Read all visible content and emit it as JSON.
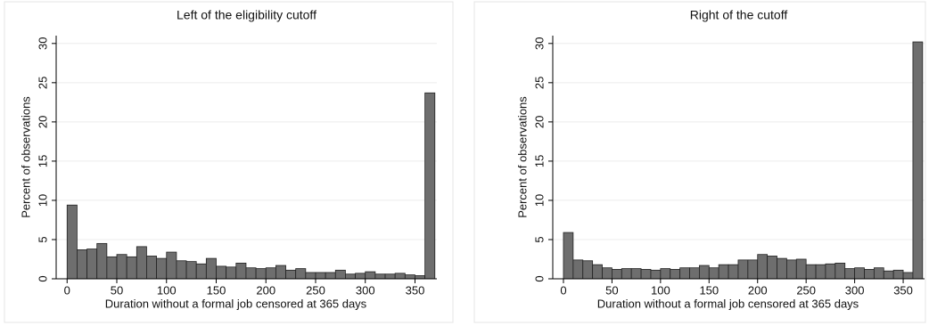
{
  "chart_data": [
    {
      "type": "histogram",
      "title": "Left of the eligibility cutoff",
      "xlabel": "Duration without a formal job censored at 365 days",
      "ylabel": "Percent of observations",
      "bins": [
        0,
        10,
        20,
        30,
        40,
        50,
        60,
        70,
        80,
        90,
        100,
        110,
        120,
        130,
        140,
        150,
        160,
        170,
        180,
        190,
        200,
        210,
        220,
        230,
        240,
        250,
        260,
        270,
        280,
        290,
        300,
        310,
        320,
        330,
        340,
        350,
        360,
        370
      ],
      "values": [
        9.4,
        3.7,
        3.8,
        4.5,
        2.8,
        3.1,
        2.8,
        4.1,
        2.9,
        2.6,
        3.4,
        2.3,
        2.2,
        1.9,
        2.6,
        1.6,
        1.5,
        2.0,
        1.4,
        1.3,
        1.4,
        1.7,
        1.1,
        1.3,
        0.8,
        0.8,
        0.8,
        1.1,
        0.6,
        0.7,
        0.9,
        0.6,
        0.6,
        0.7,
        0.5,
        0.4,
        23.7
      ],
      "color": "#6e6e6e",
      "grid": true,
      "xlim": [
        -11,
        372
      ],
      "ylim": [
        0,
        31
      ],
      "xticks": [
        0,
        50,
        100,
        150,
        200,
        250,
        300,
        350
      ],
      "yticks": [
        0,
        5,
        10,
        15,
        20,
        25,
        30
      ]
    },
    {
      "type": "histogram",
      "title": "Right of the cutoff",
      "xlabel": "Duration without a formal job censored at 365 days",
      "ylabel": "Percent of observations",
      "bins": [
        0,
        10,
        20,
        30,
        40,
        50,
        60,
        70,
        80,
        90,
        100,
        110,
        120,
        130,
        140,
        150,
        160,
        170,
        180,
        190,
        200,
        210,
        220,
        230,
        240,
        250,
        260,
        270,
        280,
        290,
        300,
        310,
        320,
        330,
        340,
        350,
        360,
        370
      ],
      "values": [
        5.9,
        2.4,
        2.3,
        1.8,
        1.4,
        1.2,
        1.3,
        1.3,
        1.2,
        1.1,
        1.3,
        1.2,
        1.4,
        1.4,
        1.7,
        1.4,
        1.8,
        1.8,
        2.4,
        2.4,
        3.1,
        2.9,
        2.6,
        2.4,
        2.5,
        1.8,
        1.8,
        1.9,
        2.0,
        1.3,
        1.4,
        1.2,
        1.4,
        1.0,
        1.1,
        0.8,
        30.2
      ],
      "color": "#6e6e6e",
      "grid": true,
      "xlim": [
        -11,
        372
      ],
      "ylim": [
        0,
        31
      ],
      "xticks": [
        0,
        50,
        100,
        150,
        200,
        250,
        300,
        350
      ],
      "yticks": [
        0,
        5,
        10,
        15,
        20,
        25,
        30
      ]
    }
  ]
}
